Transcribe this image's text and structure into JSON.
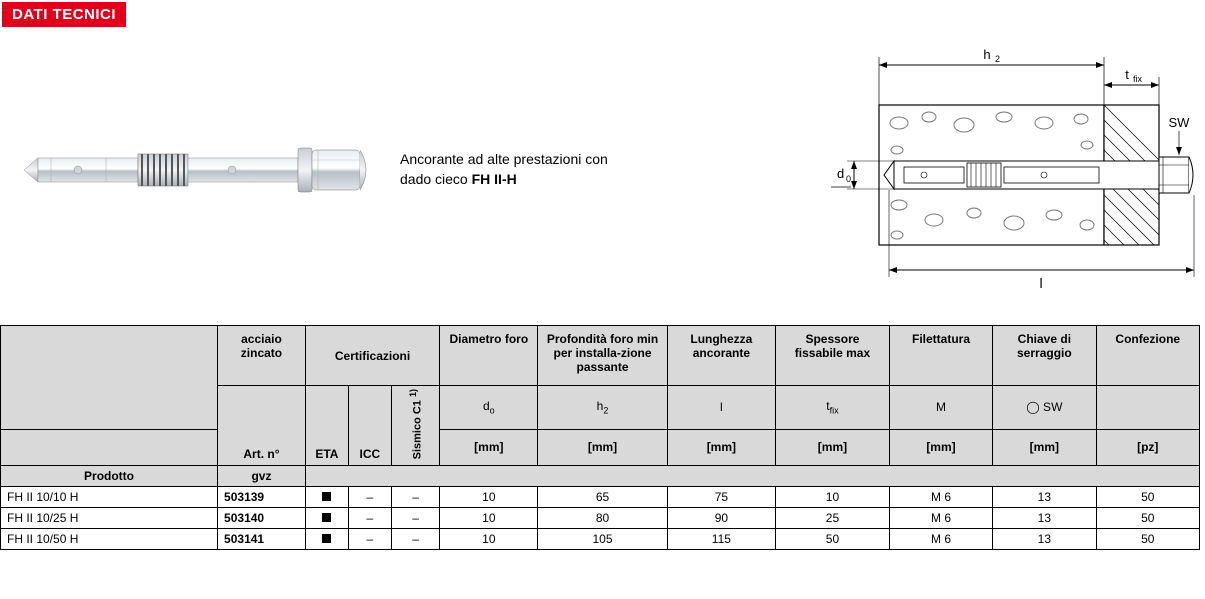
{
  "title_bar": "DATI TECNICI",
  "description_line1": "Ancorante ad alte prestazioni con",
  "description_line2a": "dado cieco ",
  "description_line2b": "FH II-H",
  "diagram_labels": {
    "h2": "h",
    "h2_sub": "2",
    "tfix": "t",
    "tfix_sub": "fix",
    "sw": "SW",
    "d0": "d",
    "d0_sub": "0",
    "l": "l",
    "arrow_d0": "↕",
    "arrow_l": "l"
  },
  "table": {
    "headers": {
      "blank": "",
      "acciaio": "acciaio zincato",
      "cert": "Certificazioni",
      "diam": "Diametro foro",
      "prof": "Profondità foro min per installa-zione passante",
      "lung": "Lunghezza ancorante",
      "spes": "Spessore fissabile max",
      "fil": "Filettatura",
      "chiave": "Chiave di serraggio",
      "conf": "Confezione",
      "art": "Art. n°",
      "eta": "ETA",
      "icc": "ICC",
      "sismico": "Sismico C1 ",
      "sismico_sup": "1)",
      "prodotto": "Prodotto",
      "gvz": "gvz"
    },
    "symbols": {
      "d0": "d",
      "d0_sub": "o",
      "h2": "h",
      "h2_sub": "2",
      "l": "l",
      "tfix": "t",
      "tfix_sub": "fix",
      "M": "M",
      "sw_sym": "◯ SW"
    },
    "units": {
      "mm": "[mm]",
      "pz": "[pz]"
    },
    "rows": [
      {
        "name": "FH II 10/10 H",
        "art": "503139",
        "eta": "■",
        "icc": "–",
        "sis": "–",
        "d0": "10",
        "h2": "65",
        "l": "75",
        "tfix": "10",
        "M": "M 6",
        "sw": "13",
        "conf": "50"
      },
      {
        "name": "FH II 10/25 H",
        "art": "503140",
        "eta": "■",
        "icc": "–",
        "sis": "–",
        "d0": "10",
        "h2": "80",
        "l": "90",
        "tfix": "25",
        "M": "M 6",
        "sw": "13",
        "conf": "50"
      },
      {
        "name": "FH II 10/50 H",
        "art": "503141",
        "eta": "■",
        "icc": "–",
        "sis": "–",
        "d0": "10",
        "h2": "105",
        "l": "115",
        "tfix": "50",
        "M": "M 6",
        "sw": "13",
        "conf": "50"
      }
    ]
  },
  "colors": {
    "title_bg": "#e2001a",
    "header_bg": "#d9d9d9"
  }
}
